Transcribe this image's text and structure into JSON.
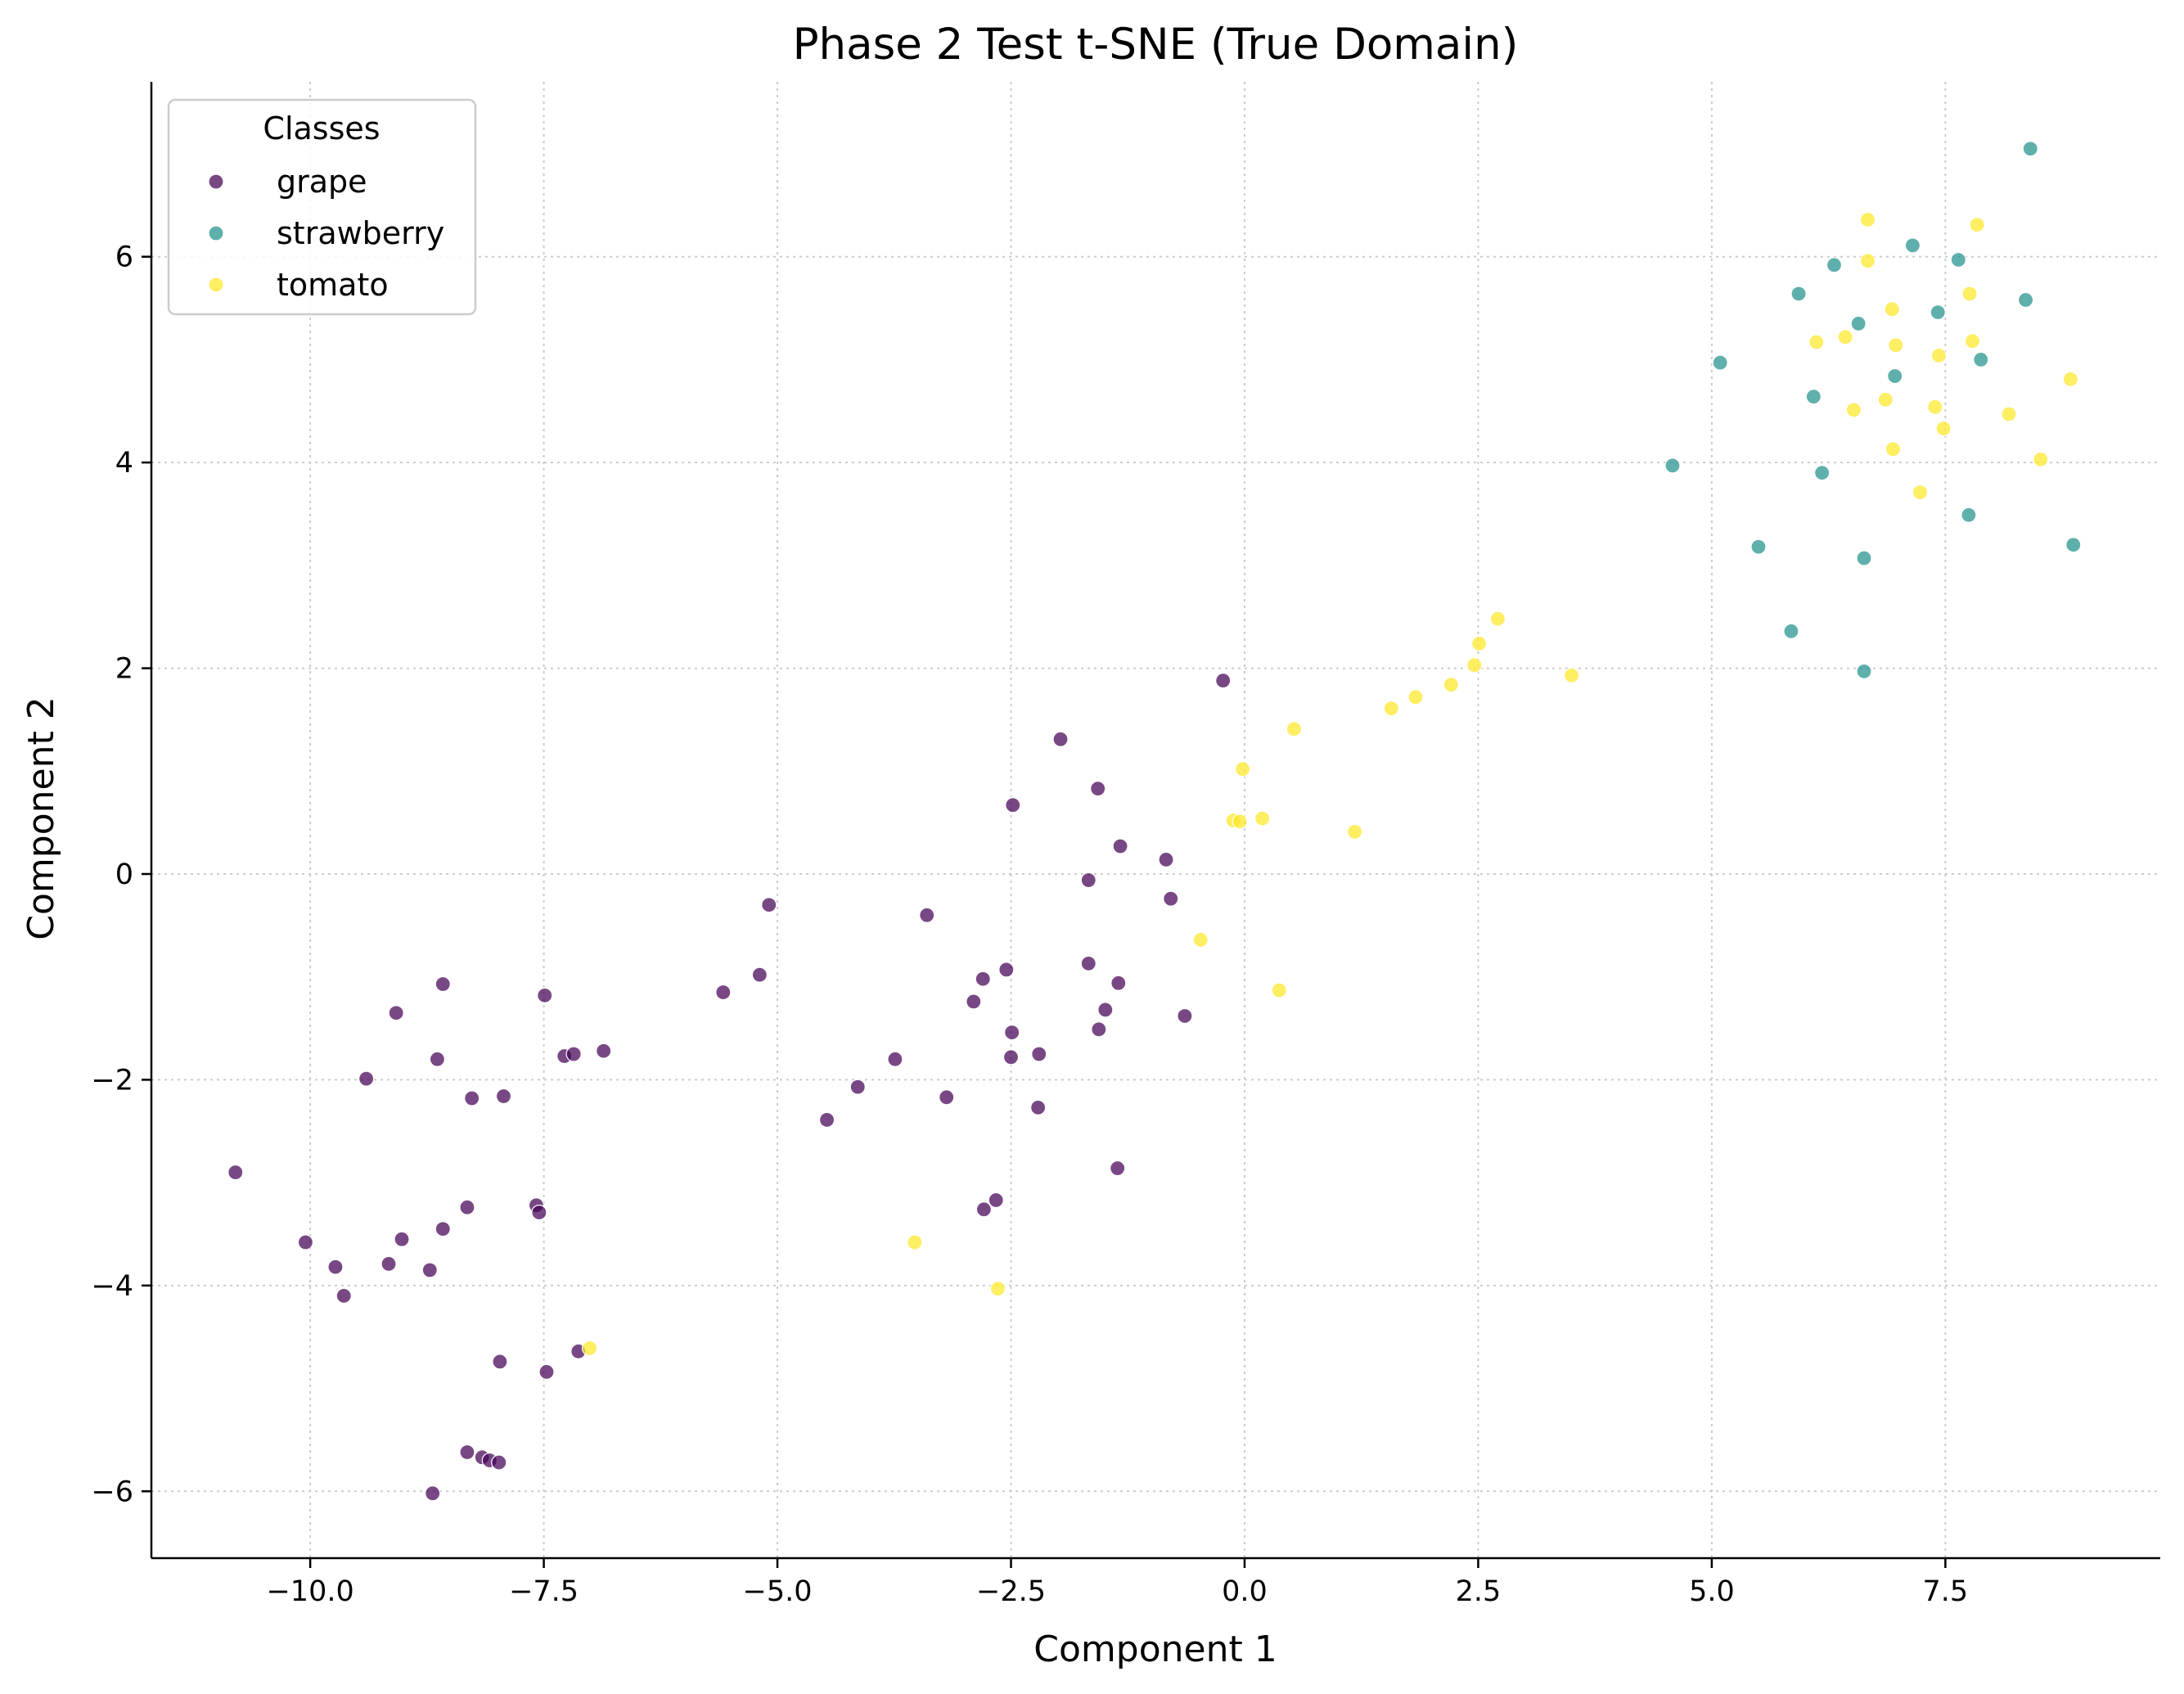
{
  "chart_data": {
    "type": "scatter",
    "title": "Phase 2 Test t-SNE (True Domain)",
    "xlabel": "Component 1",
    "ylabel": "Component 2",
    "xlim": [
      -11.7,
      9.8
    ],
    "ylim": [
      -6.65,
      7.7
    ],
    "xticks": [
      -10.0,
      -7.5,
      -5.0,
      -2.5,
      0.0,
      2.5,
      5.0,
      7.5
    ],
    "xtick_labels": [
      "−10.0",
      "−7.5",
      "−5.0",
      "−2.5",
      "0.0",
      "2.5",
      "5.0",
      "7.5"
    ],
    "yticks": [
      -6,
      -4,
      -2,
      0,
      2,
      4,
      6
    ],
    "ytick_labels": [
      "−6",
      "−4",
      "−2",
      "0",
      "2",
      "4",
      "6"
    ],
    "grid": true,
    "legend": {
      "title": "Classes",
      "position": "top-left"
    },
    "series": [
      {
        "name": "grape",
        "color": "#440154",
        "points": [
          [
            -10.8,
            -2.9
          ],
          [
            -10.05,
            -3.58
          ],
          [
            -9.73,
            -3.82
          ],
          [
            -9.64,
            -4.1
          ],
          [
            -9.4,
            -1.99
          ],
          [
            -9.16,
            -3.79
          ],
          [
            -9.08,
            -1.35
          ],
          [
            -9.02,
            -3.55
          ],
          [
            -8.72,
            -3.85
          ],
          [
            -8.69,
            -6.02
          ],
          [
            -8.64,
            -1.8
          ],
          [
            -8.58,
            -3.45
          ],
          [
            -8.58,
            -1.07
          ],
          [
            -8.32,
            -3.24
          ],
          [
            -8.32,
            -5.62
          ],
          [
            -8.27,
            -2.18
          ],
          [
            -8.16,
            -5.67
          ],
          [
            -8.08,
            -5.7
          ],
          [
            -7.98,
            -5.72
          ],
          [
            -7.97,
            -4.74
          ],
          [
            -7.93,
            -2.16
          ],
          [
            -7.58,
            -3.22
          ],
          [
            -7.55,
            -3.29
          ],
          [
            -7.49,
            -1.18
          ],
          [
            -7.47,
            -4.84
          ],
          [
            -7.28,
            -1.77
          ],
          [
            -7.18,
            -1.75
          ],
          [
            -7.13,
            -4.64
          ],
          [
            -6.86,
            -1.72
          ],
          [
            -5.58,
            -1.15
          ],
          [
            -5.19,
            -0.98
          ],
          [
            -5.09,
            -0.3
          ],
          [
            -4.47,
            -2.39
          ],
          [
            -4.14,
            -2.07
          ],
          [
            -3.74,
            -1.8
          ],
          [
            -3.4,
            -0.4
          ],
          [
            -3.19,
            -2.17
          ],
          [
            -2.9,
            -1.24
          ],
          [
            -2.8,
            -1.02
          ],
          [
            -2.79,
            -3.26
          ],
          [
            -2.66,
            -3.17
          ],
          [
            -2.55,
            -0.93
          ],
          [
            -2.5,
            -1.78
          ],
          [
            -2.49,
            -1.54
          ],
          [
            -2.48,
            0.67
          ],
          [
            -2.2,
            -1.75
          ],
          [
            -2.21,
            -2.27
          ],
          [
            -1.97,
            1.31
          ],
          [
            -1.67,
            -0.06
          ],
          [
            -1.67,
            -0.87
          ],
          [
            -1.57,
            0.83
          ],
          [
            -1.56,
            -1.51
          ],
          [
            -1.49,
            -1.32
          ],
          [
            -1.36,
            -2.86
          ],
          [
            -1.35,
            -1.06
          ],
          [
            -1.33,
            0.27
          ],
          [
            -0.84,
            0.14
          ],
          [
            -0.79,
            -0.24
          ],
          [
            -0.64,
            -1.38
          ],
          [
            -0.23,
            1.88
          ]
        ]
      },
      {
        "name": "strawberry",
        "color": "#21918c",
        "points": [
          [
            4.58,
            3.97
          ],
          [
            5.09,
            4.97
          ],
          [
            5.5,
            3.18
          ],
          [
            5.85,
            2.36
          ],
          [
            5.93,
            5.64
          ],
          [
            6.09,
            4.64
          ],
          [
            6.18,
            3.9
          ],
          [
            6.31,
            5.92
          ],
          [
            6.57,
            5.35
          ],
          [
            6.63,
            3.07
          ],
          [
            6.63,
            1.97
          ],
          [
            6.96,
            4.84
          ],
          [
            7.15,
            6.11
          ],
          [
            7.42,
            5.46
          ],
          [
            7.64,
            5.97
          ],
          [
            7.75,
            3.49
          ],
          [
            7.88,
            5.0
          ],
          [
            8.36,
            5.58
          ],
          [
            8.41,
            7.05
          ],
          [
            8.87,
            3.2
          ]
        ]
      },
      {
        "name": "tomato",
        "color": "#fde725",
        "points": [
          [
            -7.01,
            -4.61
          ],
          [
            -3.53,
            -3.58
          ],
          [
            -2.64,
            -4.03
          ],
          [
            -0.47,
            -0.64
          ],
          [
            -0.12,
            0.52
          ],
          [
            -0.05,
            0.51
          ],
          [
            -0.02,
            1.02
          ],
          [
            0.19,
            0.54
          ],
          [
            0.37,
            -1.13
          ],
          [
            0.53,
            1.41
          ],
          [
            1.18,
            0.41
          ],
          [
            1.57,
            1.61
          ],
          [
            1.83,
            1.72
          ],
          [
            2.21,
            1.84
          ],
          [
            2.46,
            2.03
          ],
          [
            2.51,
            2.24
          ],
          [
            2.71,
            2.48
          ],
          [
            3.5,
            1.93
          ],
          [
            6.12,
            5.17
          ],
          [
            6.43,
            5.22
          ],
          [
            6.52,
            4.51
          ],
          [
            6.67,
            6.36
          ],
          [
            6.67,
            5.96
          ],
          [
            6.86,
            4.61
          ],
          [
            6.93,
            5.49
          ],
          [
            6.94,
            4.13
          ],
          [
            6.97,
            5.14
          ],
          [
            7.23,
            3.71
          ],
          [
            7.39,
            4.54
          ],
          [
            7.43,
            5.04
          ],
          [
            7.48,
            4.33
          ],
          [
            7.76,
            5.64
          ],
          [
            7.79,
            5.18
          ],
          [
            7.84,
            6.31
          ],
          [
            8.18,
            4.47
          ],
          [
            8.52,
            4.03
          ],
          [
            8.84,
            4.81
          ]
        ]
      }
    ]
  }
}
